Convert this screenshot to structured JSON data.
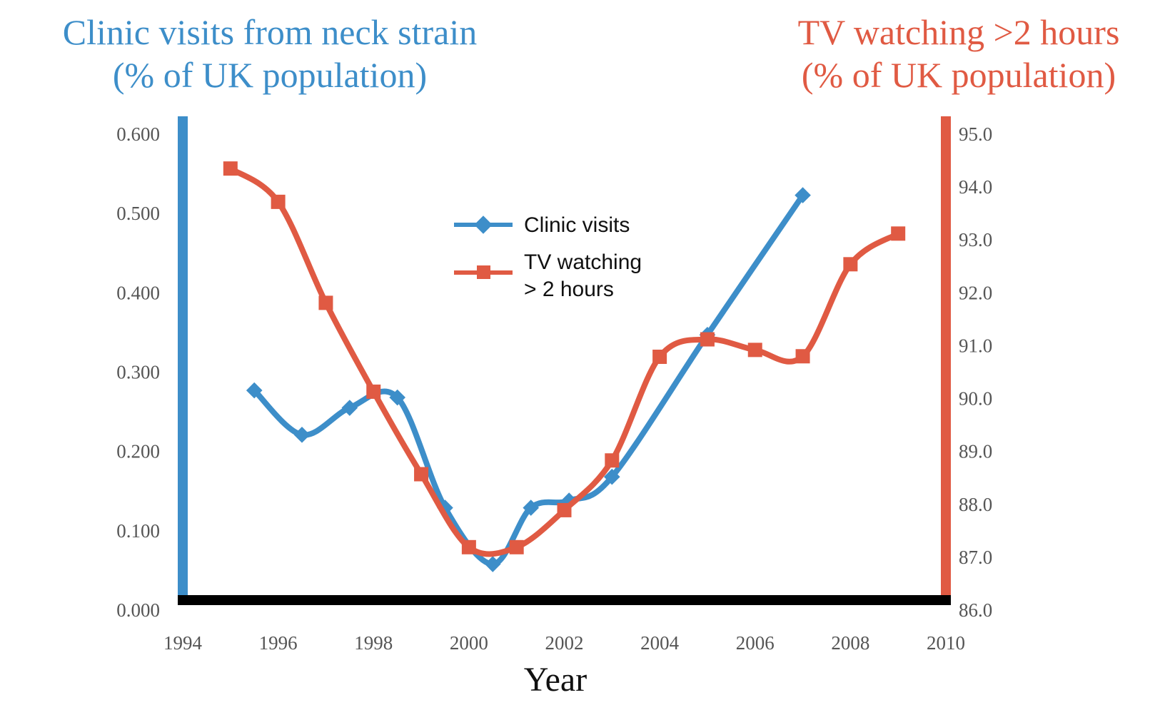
{
  "chart_data": {
    "type": "line",
    "title_left": [
      "Clinic visits from neck strain",
      "(% of UK population)"
    ],
    "title_right": [
      "TV watching >2 hours",
      "(% of UK population)"
    ],
    "xlabel": "Year",
    "x_ticks": [
      "1994",
      "1996",
      "1998",
      "2000",
      "2002",
      "2004",
      "2006",
      "2008",
      "2010"
    ],
    "xlim": [
      1994,
      2010
    ],
    "y_left_ticks": [
      "0.000",
      "0.100",
      "0.200",
      "0.300",
      "0.400",
      "0.500",
      "0.600"
    ],
    "y_left_lim": [
      0,
      0.6
    ],
    "y_right_ticks": [
      "86.0",
      "87.0",
      "88.0",
      "89.0",
      "90.0",
      "91.0",
      "92.0",
      "93.0",
      "94.0",
      "95.0"
    ],
    "y_right_lim": [
      86,
      95
    ],
    "series": [
      {
        "name": "Clinic visits",
        "axis": "left",
        "marker": "diamond",
        "color": "#3d8ec9",
        "x": [
          1995.5,
          1996.5,
          1997.5,
          1998.5,
          1999.5,
          2000.5,
          2001.3,
          2002.1,
          2003.0,
          2005.0,
          2007.0
        ],
        "y": [
          0.277,
          0.221,
          0.255,
          0.268,
          0.129,
          0.058,
          0.129,
          0.138,
          0.168,
          0.347,
          0.523
        ]
      },
      {
        "name": "TV watching\n> 2 hours",
        "axis": "right",
        "marker": "square",
        "color": "#e05a43",
        "x": [
          1995.0,
          1996.0,
          1997.0,
          1998.0,
          1999.0,
          2000.0,
          2001.0,
          2002.0,
          2003.0,
          2004.0,
          2005.0,
          2006.0,
          2007.0,
          2008.0,
          2009.0
        ],
        "y": [
          94.35,
          93.72,
          91.81,
          90.13,
          88.57,
          87.19,
          87.19,
          87.89,
          88.83,
          90.79,
          91.12,
          90.92,
          90.8,
          92.54,
          93.12
        ]
      }
    ],
    "legend": {
      "position": "top-center",
      "entries": [
        "Clinic visits",
        "TV watching",
        "> 2 hours"
      ]
    },
    "colors": {
      "left_axis": "#3d8ec9",
      "right_axis": "#e05a43",
      "baseline": "#000000"
    },
    "grid": false
  }
}
